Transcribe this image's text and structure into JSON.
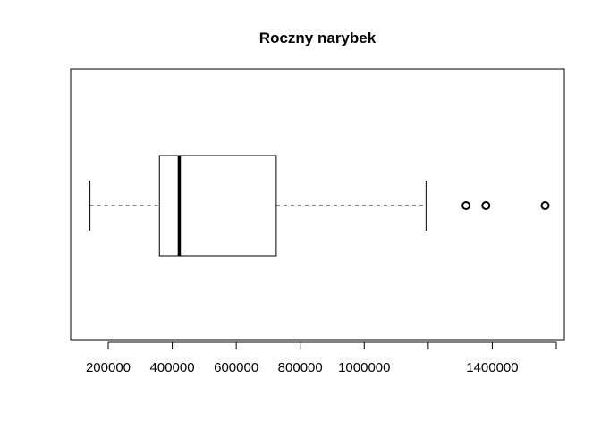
{
  "chart_data": {
    "type": "boxplot",
    "orientation": "horizontal",
    "title": "Roczny narybek",
    "xlabel": "",
    "ylabel": "",
    "grid": false,
    "xlim": [
      80000,
      1600000
    ],
    "ticks": [
      200000,
      400000,
      600000,
      800000,
      1000000,
      1200000,
      1400000,
      1600000
    ],
    "tick_labels": [
      "200000",
      "400000",
      "600000",
      "800000",
      "1000000",
      "",
      "1400000",
      ""
    ],
    "box": {
      "whisker_low": 143000,
      "q1": 360000,
      "median": 422000,
      "q3": 725000,
      "whisker_high": 1193000
    },
    "outliers": [
      1318000,
      1380000,
      1565000
    ],
    "colors": {
      "stroke": "#000000",
      "background": "#ffffff"
    }
  }
}
